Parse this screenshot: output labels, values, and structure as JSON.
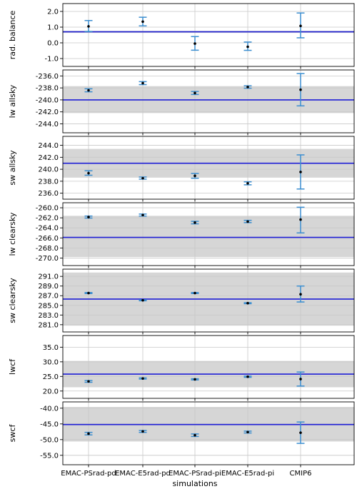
{
  "chart_data": {
    "type": "scatter",
    "xlabel": "simulations",
    "categories": [
      "EMAC-PSrad-pd",
      "EMAC-E5rad-pd",
      "EMAC-PSrad-pi",
      "EMAC-E5rad-pi",
      "CMIP6"
    ],
    "colors": {
      "reference_line": "#1f1fd6",
      "reference_band": "#d6d6d6",
      "errorbar": "#3b8ed0",
      "point": "#000000",
      "grid": "#c8c8c8"
    },
    "grid": true,
    "panels": [
      {
        "ylabel": "rad. balance",
        "ylim": [
          -1.5,
          2.5
        ],
        "yticks": [
          2.0,
          1.0,
          0.0,
          -1.0
        ],
        "yticklabels": [
          "2.0",
          "1.0",
          "0.0",
          "-1.0"
        ],
        "reference": 0.7,
        "band": [
          0.63,
          0.77
        ],
        "points": [
          {
            "value": 1.05,
            "low": 0.72,
            "high": 1.42
          },
          {
            "value": 1.35,
            "low": 1.08,
            "high": 1.63
          },
          {
            "value": -0.05,
            "low": -0.47,
            "high": 0.4
          },
          {
            "value": -0.25,
            "low": -0.48,
            "high": 0.05
          },
          {
            "value": 1.08,
            "low": 0.32,
            "high": 1.9
          }
        ]
      },
      {
        "ylabel": "lw allsky",
        "ylim": [
          -245.5,
          -235.0
        ],
        "yticks": [
          -236.0,
          -238.0,
          -240.0,
          -242.0,
          -244.0
        ],
        "yticklabels": [
          "-236.0",
          "-238.0",
          "-240.0",
          "-242.0",
          "-244.0"
        ],
        "reference": -240.0,
        "band": [
          -242.2,
          -237.7
        ],
        "points": [
          {
            "value": -238.4,
            "low": -238.65,
            "high": -238.15
          },
          {
            "value": -237.2,
            "low": -237.45,
            "high": -236.95
          },
          {
            "value": -238.85,
            "low": -239.1,
            "high": -238.6
          },
          {
            "value": -237.85,
            "low": -238.05,
            "high": -237.65
          },
          {
            "value": -238.3,
            "low": -241.0,
            "high": -235.6
          }
        ]
      },
      {
        "ylabel": "sw allsky",
        "ylim": [
          235.0,
          245.5
        ],
        "yticks": [
          244.0,
          242.0,
          240.0,
          238.0,
          236.0
        ],
        "yticklabels": [
          "244.0",
          "242.0",
          "240.0",
          "238.0",
          "236.0"
        ],
        "reference": 241.0,
        "band": [
          238.6,
          243.4
        ],
        "points": [
          {
            "value": 239.35,
            "low": 239.0,
            "high": 239.75
          },
          {
            "value": 238.5,
            "low": 238.35,
            "high": 238.7
          },
          {
            "value": 238.9,
            "low": 238.5,
            "high": 239.3
          },
          {
            "value": 237.65,
            "low": 237.4,
            "high": 237.9
          },
          {
            "value": 239.55,
            "low": 236.7,
            "high": 242.4
          }
        ]
      },
      {
        "ylabel": "lw clearsky",
        "ylim": [
          -271.5,
          -259.0
        ],
        "yticks": [
          -260.0,
          -262.0,
          -264.0,
          -266.0,
          -268.0,
          -270.0
        ],
        "yticklabels": [
          "-260.0",
          "-262.0",
          "-264.0",
          "-266.0",
          "-268.0",
          "-270.0"
        ],
        "reference": -265.9,
        "band": [
          -269.8,
          -261.6
        ],
        "points": [
          {
            "value": -261.85,
            "low": -262.05,
            "high": -261.65
          },
          {
            "value": -261.45,
            "low": -261.65,
            "high": -261.25
          },
          {
            "value": -262.95,
            "low": -263.2,
            "high": -262.7
          },
          {
            "value": -262.75,
            "low": -262.95,
            "high": -262.5
          },
          {
            "value": -262.35,
            "low": -265.0,
            "high": -259.9
          }
        ]
      },
      {
        "ylabel": "sw clearsky",
        "ylim": [
          279.5,
          292.5
        ],
        "yticks": [
          291.0,
          289.0,
          287.0,
          285.0,
          283.0,
          281.0
        ],
        "yticklabels": [
          "291.0",
          "289.0",
          "287.0",
          "285.0",
          "283.0",
          "281.0"
        ],
        "reference": 286.3,
        "band": [
          280.8,
          291.8
        ],
        "points": [
          {
            "value": 287.55,
            "low": 287.45,
            "high": 287.65
          },
          {
            "value": 286.05,
            "low": 285.95,
            "high": 286.15
          },
          {
            "value": 287.55,
            "low": 287.45,
            "high": 287.65
          },
          {
            "value": 285.45,
            "low": 285.35,
            "high": 285.55
          },
          {
            "value": 287.3,
            "low": 285.7,
            "high": 289.0
          }
        ]
      },
      {
        "ylabel": "lwcf",
        "ylim": [
          17.5,
          39.0
        ],
        "yticks": [
          35.0,
          30.0,
          25.0,
          20.0
        ],
        "yticklabels": [
          "35.0",
          "30.0",
          "25.0",
          "20.0"
        ],
        "reference": 25.8,
        "band": [
          21.3,
          30.3
        ],
        "points": [
          {
            "value": 23.3,
            "low": 23.0,
            "high": 23.6
          },
          {
            "value": 24.3,
            "low": 24.1,
            "high": 24.5
          },
          {
            "value": 24.0,
            "low": 23.8,
            "high": 24.2
          },
          {
            "value": 24.9,
            "low": 24.7,
            "high": 25.1
          },
          {
            "value": 24.1,
            "low": 21.7,
            "high": 26.5
          }
        ]
      },
      {
        "ylabel": "swcf",
        "ylim": [
          -58.0,
          -38.0
        ],
        "yticks": [
          -40.0,
          -45.0,
          -50.0,
          -55.0
        ],
        "yticklabels": [
          "-40.0",
          "-45.0",
          "-50.0",
          "-55.0"
        ],
        "reference": -45.2,
        "band": [
          -50.6,
          -39.6
        ],
        "points": [
          {
            "value": -48.1,
            "low": -48.5,
            "high": -47.7
          },
          {
            "value": -47.4,
            "low": -47.7,
            "high": -47.1
          },
          {
            "value": -48.6,
            "low": -49.0,
            "high": -48.2
          },
          {
            "value": -47.6,
            "low": -47.9,
            "high": -47.3
          },
          {
            "value": -47.8,
            "low": -51.2,
            "high": -44.4
          }
        ]
      }
    ]
  }
}
